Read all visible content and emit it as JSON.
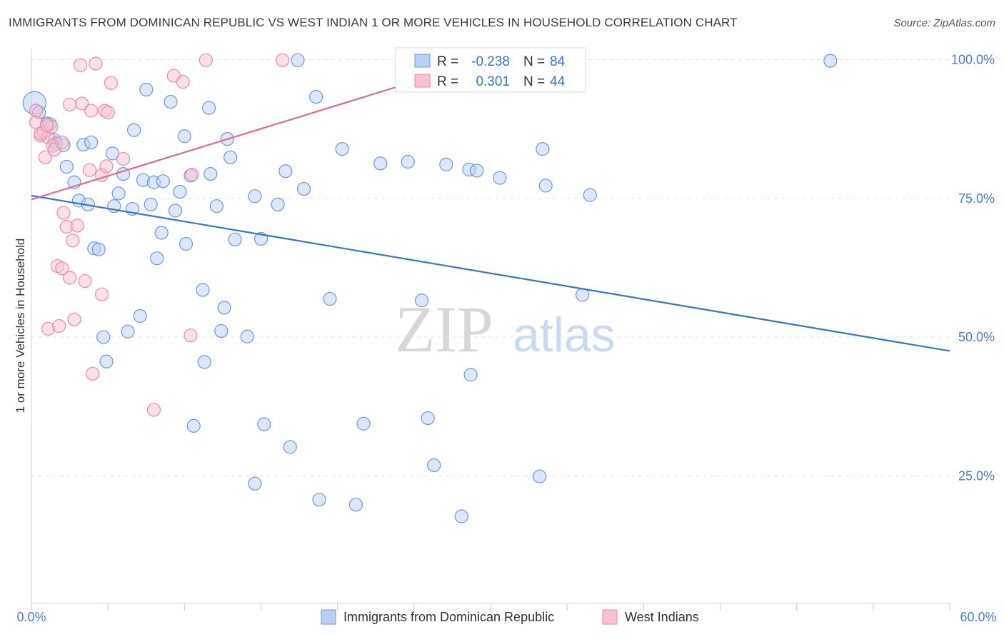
{
  "title": "IMMIGRANTS FROM DOMINICAN REPUBLIC VS WEST INDIAN 1 OR MORE VEHICLES IN HOUSEHOLD CORRELATION CHART",
  "source": "Source: ZipAtlas.com",
  "watermark": {
    "zip": "ZIP",
    "atlas": "atlas"
  },
  "colors": {
    "blue_fill": "#b9d0f3",
    "blue_stroke": "#6f97d8",
    "blue_line": "#3574d1",
    "pink_fill": "#f7c1d0",
    "pink_stroke": "#e98aa6",
    "pink_line": "#e06a93",
    "tick_label": "#4a7bd0",
    "grid": "#e2e2e2"
  },
  "stats": {
    "blue": {
      "r_label": "R = ",
      "r_value": "-0.238",
      "n_label": "N = ",
      "n_value": "84"
    },
    "pink": {
      "r_label": "R = ",
      "r_value": "0.301",
      "n_label": "N = ",
      "n_value": "44"
    }
  },
  "chart_data": {
    "type": "scatter",
    "title": "IMMIGRANTS FROM DOMINICAN REPUBLIC VS WEST INDIAN 1 OR MORE VEHICLES IN HOUSEHOLD CORRELATION CHART",
    "xlabel": "",
    "ylabel": "1 or more Vehicles in Household",
    "xlim": [
      0,
      60
    ],
    "ylim": [
      2,
      102
    ],
    "x_tick_labels": {
      "min": "0.0%",
      "max": "60.0%"
    },
    "y_ticks": [
      {
        "value": 100,
        "label": "100.0%"
      },
      {
        "value": 75,
        "label": "75.0%"
      },
      {
        "value": 50,
        "label": "50.0%"
      },
      {
        "value": 25,
        "label": "25.0%"
      }
    ],
    "legend": [
      "Immigrants from Dominican Republic",
      "West Indians"
    ],
    "series": [
      {
        "name": "Immigrants from Dominican Republic",
        "color": "blue",
        "trend": {
          "x0": 0,
          "y0": 75.5,
          "x1": 60,
          "y1": 47.5
        },
        "points": [
          {
            "x": 0.2,
            "y": 92.2,
            "big": true
          },
          {
            "x": 0.5,
            "y": 90.5
          },
          {
            "x": 1.0,
            "y": 88.5
          },
          {
            "x": 1.2,
            "y": 88.4
          },
          {
            "x": 1.5,
            "y": 85.5
          },
          {
            "x": 1.6,
            "y": 84.9
          },
          {
            "x": 2.1,
            "y": 84.6
          },
          {
            "x": 3.4,
            "y": 84.7
          },
          {
            "x": 3.9,
            "y": 85.1
          },
          {
            "x": 2.3,
            "y": 80.7
          },
          {
            "x": 2.8,
            "y": 77.9
          },
          {
            "x": 3.1,
            "y": 74.6
          },
          {
            "x": 3.7,
            "y": 73.9
          },
          {
            "x": 5.3,
            "y": 83.1
          },
          {
            "x": 6.0,
            "y": 79.4
          },
          {
            "x": 5.7,
            "y": 75.9
          },
          {
            "x": 5.4,
            "y": 73.6
          },
          {
            "x": 6.6,
            "y": 73.1
          },
          {
            "x": 6.7,
            "y": 87.3
          },
          {
            "x": 7.5,
            "y": 94.6
          },
          {
            "x": 7.3,
            "y": 78.3
          },
          {
            "x": 7.8,
            "y": 73.9
          },
          {
            "x": 8.0,
            "y": 77.9
          },
          {
            "x": 8.6,
            "y": 78.1
          },
          {
            "x": 9.1,
            "y": 92.4
          },
          {
            "x": 9.4,
            "y": 72.8
          },
          {
            "x": 9.7,
            "y": 76.2
          },
          {
            "x": 10.0,
            "y": 86.2
          },
          {
            "x": 10.4,
            "y": 79.1
          },
          {
            "x": 11.6,
            "y": 91.3
          },
          {
            "x": 11.7,
            "y": 79.4
          },
          {
            "x": 12.1,
            "y": 73.6
          },
          {
            "x": 12.8,
            "y": 85.7
          },
          {
            "x": 13.0,
            "y": 82.4
          },
          {
            "x": 13.3,
            "y": 67.6
          },
          {
            "x": 14.6,
            "y": 75.4
          },
          {
            "x": 15.0,
            "y": 67.7
          },
          {
            "x": 16.1,
            "y": 73.9
          },
          {
            "x": 16.6,
            "y": 79.9
          },
          {
            "x": 17.4,
            "y": 99.9
          },
          {
            "x": 17.8,
            "y": 76.7
          },
          {
            "x": 18.6,
            "y": 93.3
          },
          {
            "x": 20.3,
            "y": 83.9
          },
          {
            "x": 22.8,
            "y": 81.3
          },
          {
            "x": 24.6,
            "y": 81.6
          },
          {
            "x": 27.1,
            "y": 81.1
          },
          {
            "x": 28.6,
            "y": 80.2
          },
          {
            "x": 29.1,
            "y": 80.0
          },
          {
            "x": 30.6,
            "y": 78.7
          },
          {
            "x": 33.4,
            "y": 83.9
          },
          {
            "x": 33.6,
            "y": 77.3
          },
          {
            "x": 36.5,
            "y": 75.6
          },
          {
            "x": 52.2,
            "y": 99.8
          },
          {
            "x": 4.1,
            "y": 66.0
          },
          {
            "x": 4.4,
            "y": 65.8
          },
          {
            "x": 8.5,
            "y": 68.8
          },
          {
            "x": 10.1,
            "y": 66.8
          },
          {
            "x": 8.2,
            "y": 64.2
          },
          {
            "x": 11.2,
            "y": 58.5
          },
          {
            "x": 12.6,
            "y": 55.3
          },
          {
            "x": 14.1,
            "y": 50.1
          },
          {
            "x": 12.4,
            "y": 51.1
          },
          {
            "x": 7.1,
            "y": 53.8
          },
          {
            "x": 6.3,
            "y": 51.0
          },
          {
            "x": 4.7,
            "y": 50.0
          },
          {
            "x": 4.9,
            "y": 45.6
          },
          {
            "x": 11.3,
            "y": 45.5
          },
          {
            "x": 19.5,
            "y": 56.9
          },
          {
            "x": 25.5,
            "y": 56.6
          },
          {
            "x": 36.0,
            "y": 57.6
          },
          {
            "x": 28.7,
            "y": 43.2
          },
          {
            "x": 10.6,
            "y": 34.0
          },
          {
            "x": 15.2,
            "y": 34.3
          },
          {
            "x": 21.7,
            "y": 34.4
          },
          {
            "x": 25.9,
            "y": 35.4
          },
          {
            "x": 16.9,
            "y": 30.2
          },
          {
            "x": 26.3,
            "y": 26.9
          },
          {
            "x": 14.6,
            "y": 23.6
          },
          {
            "x": 33.2,
            "y": 24.9
          },
          {
            "x": 18.8,
            "y": 20.7
          },
          {
            "x": 21.2,
            "y": 19.8
          },
          {
            "x": 28.1,
            "y": 17.7
          }
        ]
      },
      {
        "name": "West Indians",
        "color": "pink",
        "trend": {
          "x0": 0,
          "y0": 74.8,
          "x1": 32,
          "y1": 102.0
        },
        "points": [
          {
            "x": 0.3,
            "y": 90.8
          },
          {
            "x": 0.6,
            "y": 86.3
          },
          {
            "x": 0.8,
            "y": 87.0
          },
          {
            "x": 0.9,
            "y": 82.4
          },
          {
            "x": 1.1,
            "y": 86.0
          },
          {
            "x": 1.4,
            "y": 84.5
          },
          {
            "x": 1.5,
            "y": 83.8
          },
          {
            "x": 2.5,
            "y": 91.9
          },
          {
            "x": 3.2,
            "y": 99.0
          },
          {
            "x": 4.2,
            "y": 99.3
          },
          {
            "x": 5.2,
            "y": 95.8
          },
          {
            "x": 3.3,
            "y": 92.1
          },
          {
            "x": 3.9,
            "y": 90.8
          },
          {
            "x": 4.8,
            "y": 90.8
          },
          {
            "x": 5.0,
            "y": 90.5
          },
          {
            "x": 9.3,
            "y": 97.1
          },
          {
            "x": 9.9,
            "y": 96.0
          },
          {
            "x": 11.4,
            "y": 99.9
          },
          {
            "x": 16.4,
            "y": 99.9
          },
          {
            "x": 3.8,
            "y": 80.1
          },
          {
            "x": 4.6,
            "y": 79.2
          },
          {
            "x": 4.9,
            "y": 80.8
          },
          {
            "x": 6.0,
            "y": 82.1
          },
          {
            "x": 10.5,
            "y": 79.3
          },
          {
            "x": 2.1,
            "y": 72.4
          },
          {
            "x": 2.3,
            "y": 69.9
          },
          {
            "x": 3.0,
            "y": 70.1
          },
          {
            "x": 2.7,
            "y": 67.4
          },
          {
            "x": 1.7,
            "y": 62.8
          },
          {
            "x": 2.0,
            "y": 62.4
          },
          {
            "x": 2.5,
            "y": 60.7
          },
          {
            "x": 3.5,
            "y": 60.1
          },
          {
            "x": 4.6,
            "y": 57.7
          },
          {
            "x": 1.1,
            "y": 51.5
          },
          {
            "x": 1.8,
            "y": 52.0
          },
          {
            "x": 2.8,
            "y": 53.2
          },
          {
            "x": 10.4,
            "y": 50.3
          },
          {
            "x": 4.0,
            "y": 43.4
          },
          {
            "x": 8.0,
            "y": 36.9
          },
          {
            "x": 0.3,
            "y": 88.7
          },
          {
            "x": 0.6,
            "y": 86.7
          },
          {
            "x": 1.3,
            "y": 87.9
          },
          {
            "x": 2.0,
            "y": 85.1
          },
          {
            "x": 1.0,
            "y": 88.2
          }
        ]
      }
    ]
  }
}
